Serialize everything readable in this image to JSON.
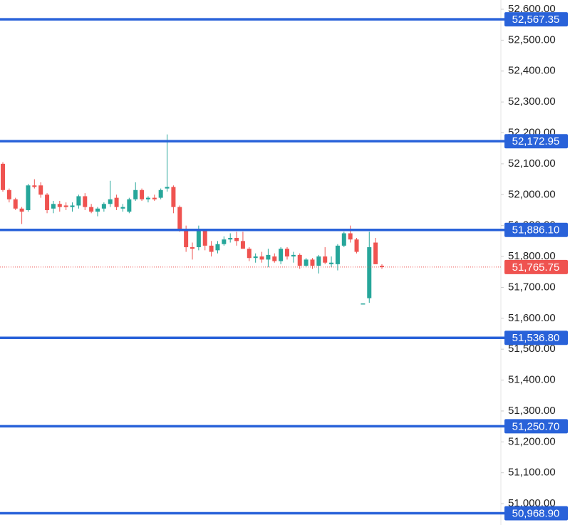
{
  "chart_data": {
    "type": "candlestick",
    "ylim": [
      50931,
      52630
    ],
    "yticks": [
      {
        "value": 52600,
        "label": "52,600.00"
      },
      {
        "value": 52500,
        "label": "52,500.00"
      },
      {
        "value": 52400,
        "label": "52,400.00"
      },
      {
        "value": 52300,
        "label": "52,300.00"
      },
      {
        "value": 52200,
        "label": "52,200.00"
      },
      {
        "value": 52100,
        "label": "52,100.00"
      },
      {
        "value": 52000,
        "label": "52,000.00"
      },
      {
        "value": 51900,
        "label": "51,900.00"
      },
      {
        "value": 51800,
        "label": "51,800.00"
      },
      {
        "value": 51700,
        "label": "51,700.00"
      },
      {
        "value": 51600,
        "label": "51,600.00"
      },
      {
        "value": 51500,
        "label": "51,500.00"
      },
      {
        "value": 51400,
        "label": "51,400.00"
      },
      {
        "value": 51300,
        "label": "51,300.00"
      },
      {
        "value": 51200,
        "label": "51,200.00"
      },
      {
        "value": 51100,
        "label": "51,100.00"
      },
      {
        "value": 51000,
        "label": "51,000.00"
      }
    ],
    "up_color": "#26a69a",
    "down_color": "#ef5350",
    "candles": {
      "open": [
        52100,
        52015,
        51985,
        51955,
        51950,
        52030,
        52030,
        52000,
        51955,
        51970,
        51965,
        51960,
        51965,
        51995,
        51960,
        51945,
        51955,
        51970,
        51990,
        51955,
        51945,
        51985,
        52015,
        51985,
        51990,
        51990,
        52020,
        52025,
        51960,
        51890,
        51830,
        51830,
        51885,
        51835,
        51820,
        51840,
        51855,
        51860,
        51850,
        51825,
        51795,
        51800,
        51790,
        51800,
        51785,
        51825,
        51800,
        51805,
        51770,
        51790,
        51770,
        51800,
        51775,
        51775,
        51835,
        51875,
        51855,
        51648,
        51665,
        51845,
        51770
      ],
      "high": [
        52105,
        52020,
        51990,
        51960,
        52035,
        52050,
        52040,
        52005,
        51980,
        51980,
        51975,
        51975,
        52000,
        52005,
        51970,
        51960,
        51975,
        52045,
        52000,
        51970,
        51990,
        52040,
        52020,
        51995,
        52000,
        52020,
        52195,
        52030,
        51965,
        51900,
        51845,
        51900,
        51890,
        51850,
        51850,
        51865,
        51875,
        51880,
        51880,
        51830,
        51810,
        51815,
        51825,
        51810,
        51830,
        51830,
        51815,
        51810,
        51795,
        51795,
        51805,
        51830,
        51800,
        51840,
        51880,
        51900,
        51860,
        51648,
        51880,
        51860,
        51775
      ],
      "low": [
        52010,
        51975,
        51950,
        51905,
        51945,
        52020,
        51990,
        51940,
        51940,
        51945,
        51950,
        51945,
        51955,
        51950,
        51940,
        51930,
        51945,
        51960,
        51950,
        51945,
        51940,
        51980,
        51980,
        51975,
        51980,
        51985,
        52010,
        51940,
        51880,
        51815,
        51790,
        51820,
        51820,
        51800,
        51810,
        51835,
        51845,
        51835,
        51825,
        51785,
        51780,
        51780,
        51765,
        51780,
        51775,
        51790,
        51780,
        51760,
        51765,
        51760,
        51745,
        51775,
        51765,
        51755,
        51830,
        51845,
        51810,
        51648,
        51650,
        51775,
        51760
      ],
      "close": [
        52015,
        51985,
        51955,
        51945,
        52030,
        52025,
        52000,
        51950,
        51970,
        51960,
        51960,
        51965,
        51995,
        51960,
        51945,
        51955,
        51970,
        51985,
        51960,
        51960,
        51985,
        52015,
        51985,
        51990,
        51985,
        52015,
        52025,
        51960,
        51890,
        51830,
        51825,
        51885,
        51835,
        51815,
        51840,
        51855,
        51860,
        51850,
        51825,
        51795,
        51800,
        51790,
        51805,
        51785,
        51825,
        51800,
        51805,
        51770,
        51790,
        51770,
        51800,
        51780,
        51780,
        51835,
        51875,
        51855,
        51815,
        51648,
        51830,
        51775,
        51765.75
      ]
    },
    "levels": [
      {
        "value": 52567.35,
        "label": "52,567.35"
      },
      {
        "value": 52172.95,
        "label": "52,172.95"
      },
      {
        "value": 51886.1,
        "label": "51,886.10"
      },
      {
        "value": 51536.8,
        "label": "51,536.80"
      },
      {
        "value": 51250.7,
        "label": "51,250.70"
      },
      {
        "value": 50968.9,
        "label": "50,968.90"
      }
    ],
    "level_color": "#2962d9",
    "last_price": {
      "value": 51765.75,
      "label": "51,765.75"
    },
    "last_price_color": "#ef5350"
  }
}
